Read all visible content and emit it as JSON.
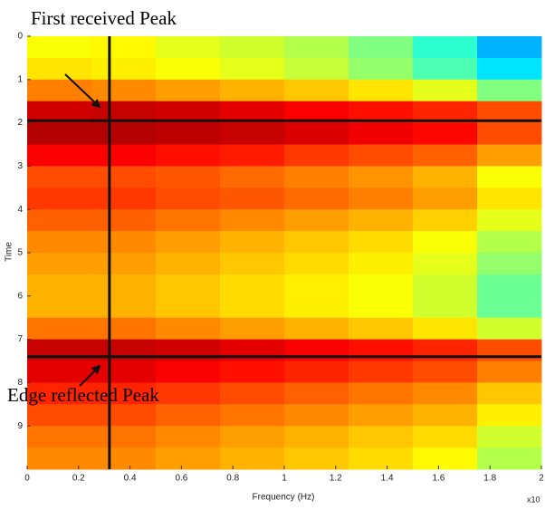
{
  "chart_data": {
    "type": "heatmap",
    "annotations": [
      "First received Peak",
      "Edge reflected Peak"
    ],
    "xlabel": "Frequency (Hz)",
    "ylabel": "Time",
    "x_exponent": "x10",
    "xlim": [
      0,
      2
    ],
    "ylim": [
      0,
      10
    ],
    "y_inverted": true,
    "xticks": [
      0,
      0.2,
      0.4,
      0.6,
      0.8,
      1,
      1.2,
      1.4,
      1.6,
      1.8,
      2
    ],
    "yticks": [
      0,
      1,
      2,
      3,
      4,
      5,
      6,
      7,
      8,
      9
    ],
    "colormap": "jet",
    "zlim": [
      0,
      1
    ],
    "xbins": [
      0,
      0.25,
      0.5,
      0.75,
      1,
      1.25,
      1.5,
      1.75,
      2
    ],
    "ybins": [
      0,
      0.5,
      1,
      1.5,
      2,
      2.5,
      3,
      3.5,
      4,
      4.5,
      5,
      5.5,
      6,
      6.5,
      7,
      7.5,
      8,
      8.5,
      9,
      9.5,
      10
    ],
    "z": [
      [
        0.62,
        0.63,
        0.6,
        0.58,
        0.55,
        0.5,
        0.42,
        0.3
      ],
      [
        0.65,
        0.64,
        0.62,
        0.6,
        0.57,
        0.52,
        0.45,
        0.35
      ],
      [
        0.75,
        0.74,
        0.72,
        0.7,
        0.68,
        0.65,
        0.6,
        0.5
      ],
      [
        0.92,
        0.93,
        0.92,
        0.9,
        0.88,
        0.86,
        0.84,
        0.8
      ],
      [
        0.95,
        0.95,
        0.94,
        0.93,
        0.91,
        0.89,
        0.87,
        0.8
      ],
      [
        0.88,
        0.88,
        0.86,
        0.85,
        0.82,
        0.8,
        0.78,
        0.72
      ],
      [
        0.8,
        0.8,
        0.79,
        0.77,
        0.75,
        0.73,
        0.7,
        0.62
      ],
      [
        0.82,
        0.82,
        0.8,
        0.79,
        0.77,
        0.75,
        0.72,
        0.65
      ],
      [
        0.78,
        0.78,
        0.76,
        0.74,
        0.72,
        0.7,
        0.67,
        0.6
      ],
      [
        0.74,
        0.74,
        0.72,
        0.7,
        0.68,
        0.66,
        0.62,
        0.55
      ],
      [
        0.72,
        0.72,
        0.7,
        0.68,
        0.66,
        0.64,
        0.6,
        0.52
      ],
      [
        0.7,
        0.7,
        0.68,
        0.66,
        0.64,
        0.62,
        0.58,
        0.48
      ],
      [
        0.7,
        0.7,
        0.68,
        0.66,
        0.64,
        0.62,
        0.58,
        0.48
      ],
      [
        0.76,
        0.76,
        0.74,
        0.72,
        0.7,
        0.68,
        0.65,
        0.58
      ],
      [
        0.93,
        0.93,
        0.92,
        0.9,
        0.88,
        0.86,
        0.84,
        0.8
      ],
      [
        0.9,
        0.9,
        0.88,
        0.86,
        0.84,
        0.82,
        0.8,
        0.75
      ],
      [
        0.84,
        0.84,
        0.82,
        0.8,
        0.78,
        0.76,
        0.74,
        0.68
      ],
      [
        0.8,
        0.8,
        0.78,
        0.76,
        0.74,
        0.72,
        0.7,
        0.64
      ],
      [
        0.76,
        0.76,
        0.74,
        0.72,
        0.7,
        0.68,
        0.66,
        0.58
      ],
      [
        0.74,
        0.74,
        0.72,
        0.7,
        0.68,
        0.66,
        0.63,
        0.55
      ]
    ],
    "vlines": [
      0.32
    ],
    "hlines": [
      1.95,
      7.4
    ],
    "marker_color": "#111111"
  }
}
